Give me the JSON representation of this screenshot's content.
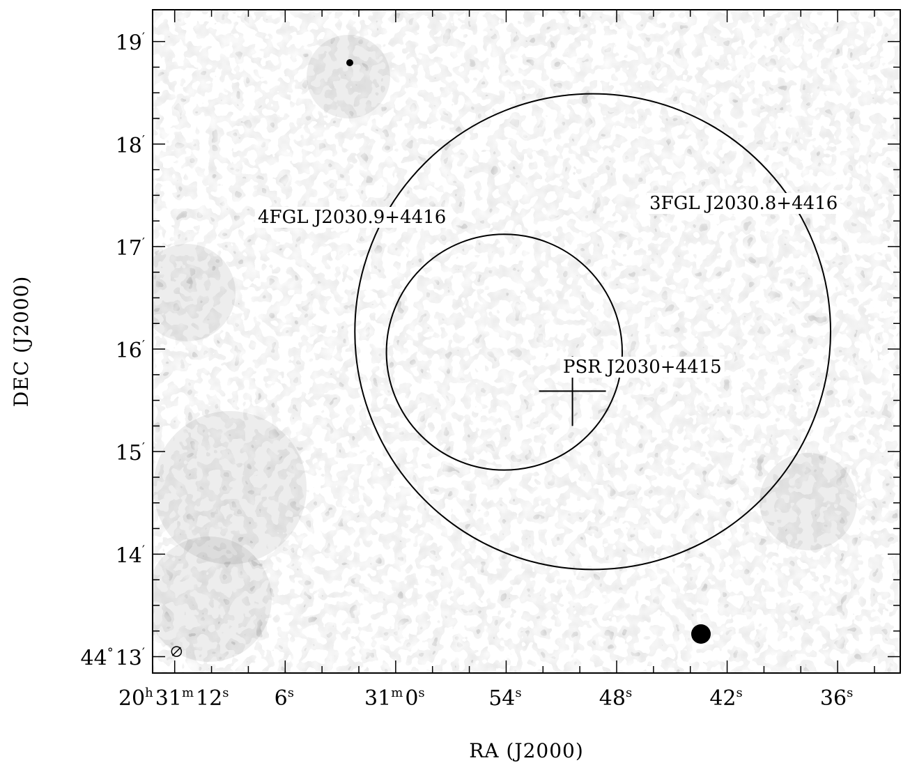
{
  "chart_data": {
    "type": "radio continuum image",
    "xlabel": "RA (J2000)",
    "ylabel": "DEC (J2000)",
    "x_ticks": [
      {
        "value_s": 72,
        "parts": [
          [
            "20",
            "h"
          ],
          [
            "31",
            "m"
          ],
          [
            "12",
            "s"
          ]
        ]
      },
      {
        "value_s": 66,
        "parts": [
          [
            "6",
            "s"
          ]
        ]
      },
      {
        "value_s": 60,
        "parts": [
          [
            "31",
            "m"
          ],
          [
            "0",
            "s"
          ]
        ]
      },
      {
        "value_s": 54,
        "parts": [
          [
            "54",
            "s"
          ]
        ]
      },
      {
        "value_s": 48,
        "parts": [
          [
            "48",
            "s"
          ]
        ]
      },
      {
        "value_s": 42,
        "parts": [
          [
            "42",
            "s"
          ]
        ]
      },
      {
        "value_s": 36,
        "parts": [
          [
            "36",
            "s"
          ]
        ]
      }
    ],
    "y_ticks": [
      {
        "value_arcmin": 19,
        "parts": [
          [
            "19",
            "′"
          ]
        ]
      },
      {
        "value_arcmin": 18,
        "parts": [
          [
            "18",
            "′"
          ]
        ]
      },
      {
        "value_arcmin": 17,
        "parts": [
          [
            "17",
            "′"
          ]
        ]
      },
      {
        "value_arcmin": 16,
        "parts": [
          [
            "16",
            "′"
          ]
        ]
      },
      {
        "value_arcmin": 15,
        "parts": [
          [
            "15",
            "′"
          ]
        ]
      },
      {
        "value_arcmin": 14,
        "parts": [
          [
            "14",
            "′"
          ]
        ]
      },
      {
        "value_arcmin": 13,
        "parts": [
          [
            "44",
            "°"
          ],
          [
            "13",
            "′"
          ]
        ]
      }
    ],
    "x_range_s": [
      73.2,
      32.6
    ],
    "y_range_arcmin": [
      12.84,
      19.31
    ],
    "sources": [
      {
        "name": "3FGL J2030.8+4416",
        "ra_s": 49.3,
        "dec_arcmin": 16.17,
        "radius_arcmin": 2.32
      },
      {
        "name": "4FGL J2030.9+4416",
        "ra_s": 54.1,
        "dec_arcmin": 15.97,
        "radius_arcmin": 1.15
      }
    ],
    "pulsar": {
      "name": "PSR J2030+4415",
      "ra_s": 50.4,
      "dec_arcmin": 15.59
    },
    "beam": {
      "ra_s": 71.9,
      "dec_arcmin": 13.05
    }
  }
}
